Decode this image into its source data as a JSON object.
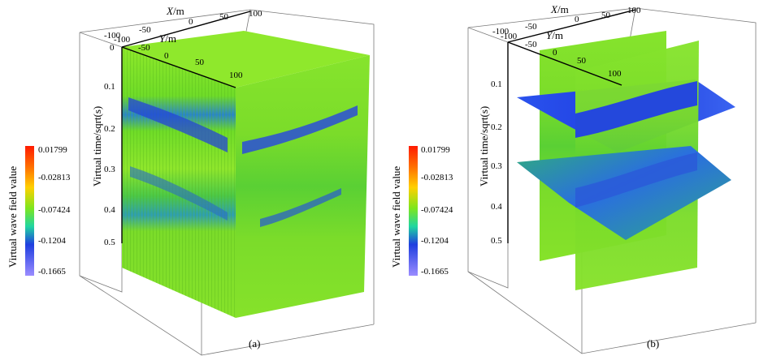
{
  "panels": [
    {
      "caption": "(a)",
      "x_axis": {
        "label_letter": "X",
        "label_unit": "/m",
        "ticks": [
          "-100",
          "-50",
          "0",
          "50",
          "100"
        ]
      },
      "y_axis": {
        "label_letter": "Y",
        "label_unit": "/m",
        "ticks": [
          "-100",
          "-50",
          "0",
          "50",
          "100"
        ]
      },
      "z_axis": {
        "label": "Virtual time/sqrt(s)",
        "ticks": [
          "0",
          "0.1",
          "0.2",
          "0.3",
          "0.4",
          "0.5"
        ]
      },
      "colorbar": {
        "label": "Virtual wave field value",
        "ticks": [
          "0.01799",
          "-0.02813",
          "-0.07424",
          "-0.1204",
          "-0.1665"
        ]
      }
    },
    {
      "caption": "(b)",
      "x_axis": {
        "label_letter": "X",
        "label_unit": "/m",
        "ticks": [
          "-100",
          "-50",
          "0",
          "50",
          "100"
        ]
      },
      "y_axis": {
        "label_letter": "Y",
        "label_unit": "/m",
        "ticks": [
          "-100",
          "-50",
          "0",
          "50",
          "100"
        ]
      },
      "z_axis": {
        "label": "Virtual time/sqrt(s)",
        "ticks": [
          "0.1",
          "0.2",
          "0.3",
          "0.4",
          "0.5"
        ]
      },
      "colorbar": {
        "label": "Virtual wave field value",
        "ticks": [
          "0.01799",
          "-0.02813",
          "-0.07424",
          "-0.1204",
          "-0.1665"
        ]
      }
    }
  ],
  "colors": {
    "green": "#7ee61e",
    "blue": "#1f3fe0",
    "colorbar_top": "#ff1a00",
    "colorbar_bottom": "#9b8cff"
  }
}
